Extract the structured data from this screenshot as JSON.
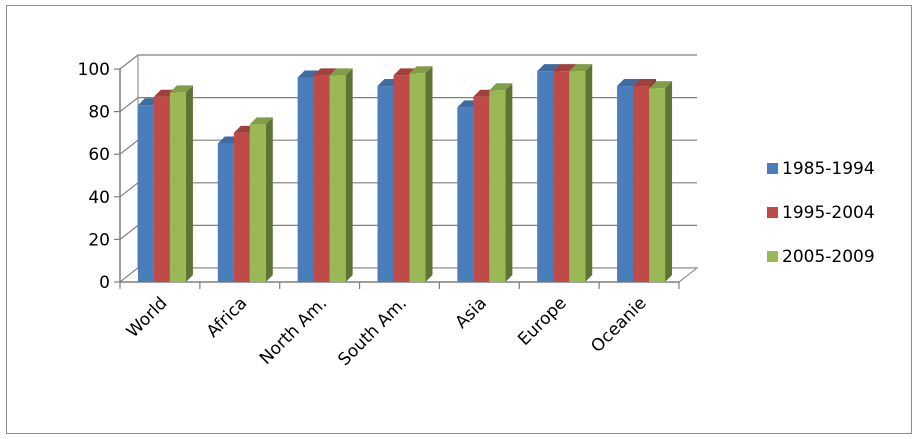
{
  "chart_data": {
    "type": "bar",
    "title": "",
    "xlabel": "",
    "ylabel": "",
    "categories": [
      "World",
      "Africa",
      "North Am.",
      "South Am.",
      "Asia",
      "Europe",
      "Oceanie"
    ],
    "series": [
      {
        "name": "1985-1994",
        "color": "#4a7ebb",
        "values": [
          83,
          65,
          96,
          92,
          82,
          99,
          92
        ]
      },
      {
        "name": "1995-2004",
        "color": "#be4b48",
        "values": [
          87,
          70,
          97,
          97,
          87,
          99,
          92
        ]
      },
      {
        "name": "2005-2009",
        "color": "#98b954",
        "values": [
          89,
          74,
          97,
          98,
          90,
          99,
          91
        ]
      }
    ],
    "yticks": [
      "0",
      "20",
      "40",
      "60",
      "80",
      "100"
    ],
    "ylim": [
      0,
      100
    ],
    "grid": true,
    "style": "3d-clustered-column",
    "legend_position": "right"
  }
}
